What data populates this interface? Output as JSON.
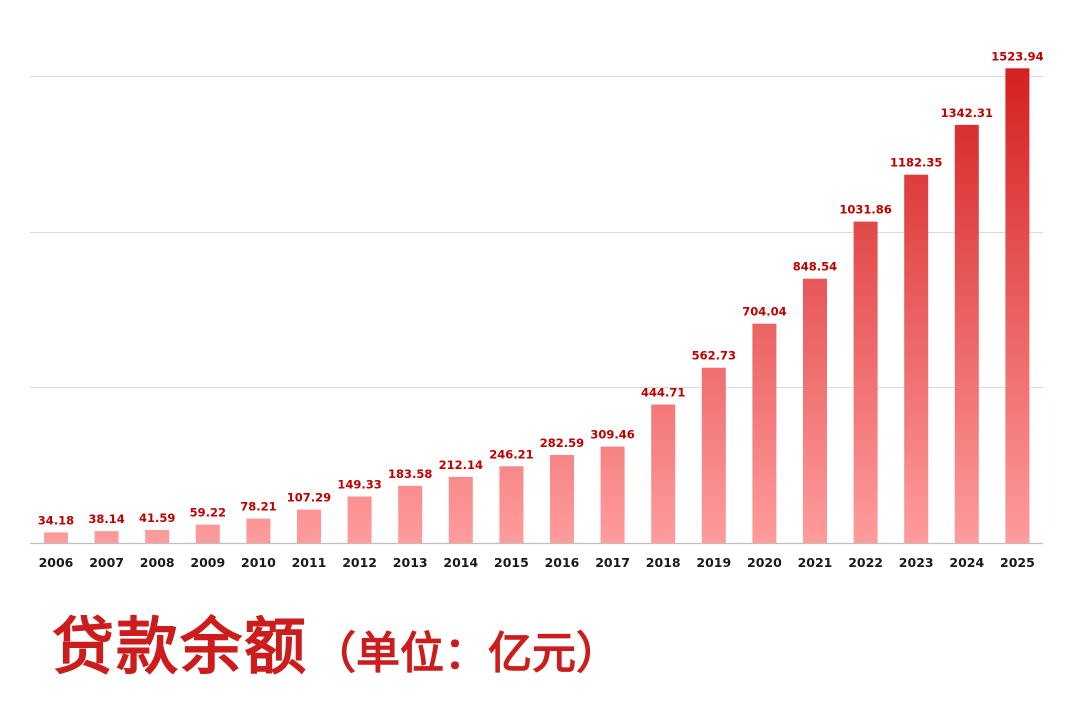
{
  "chart_data": {
    "type": "bar",
    "title": "",
    "xlabel": "",
    "ylabel": "",
    "categories": [
      "2006",
      "2007",
      "2008",
      "2009",
      "2010",
      "2011",
      "2012",
      "2013",
      "2014",
      "2015",
      "2016",
      "2017",
      "2018",
      "2019",
      "2020",
      "2021",
      "2022",
      "2023",
      "2024",
      "2025"
    ],
    "values": [
      34.18,
      38.14,
      41.59,
      59.22,
      78.21,
      107.29,
      149.33,
      183.58,
      212.14,
      246.21,
      282.59,
      309.46,
      444.71,
      562.73,
      704.04,
      848.54,
      1031.86,
      1182.35,
      1342.31,
      1523.94
    ],
    "value_labels": [
      "34.18",
      "38.14",
      "41.59",
      "59.22",
      "78.21",
      "107.29",
      "149.33",
      "183.58",
      "212.14",
      "246.21",
      "282.59",
      "309.46",
      "444.71",
      "562.73",
      "704.04",
      "848.54",
      "1031.86",
      "1182.35",
      "1342.31",
      "1523.94"
    ],
    "ylim": [
      0,
      1500
    ],
    "gridlines": [
      500,
      1000,
      1500
    ],
    "grid": true,
    "y_tick_labels_shown": false,
    "legend": "none",
    "colors": {
      "bar_low": "#ff9c9c",
      "bar_high": "#d42020",
      "label": "#c00000",
      "axis_text": "#1a1a1a",
      "grid": "#d9d9d9"
    }
  },
  "caption": {
    "main": "贷款余额",
    "unit": "（单位：亿元）",
    "color": "#cc1c1c"
  }
}
